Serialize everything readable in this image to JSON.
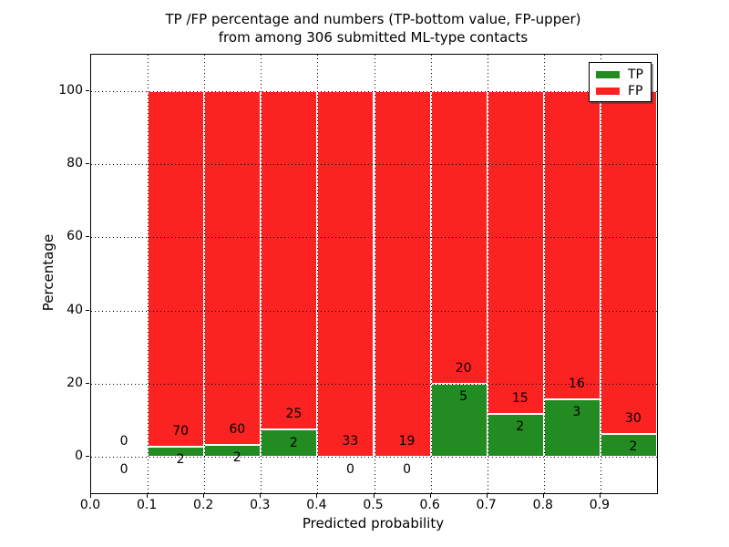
{
  "title": {
    "line1": "TP /FP percentage and numbers (TP-bottom value, FP-upper)",
    "line2": "from among 306 submitted ML-type contacts"
  },
  "colors": {
    "tp": "#228b22",
    "fp": "#fb2222",
    "bar_edge": "#ffffff",
    "grid": "#000000",
    "background": "#ffffff"
  },
  "chart_data": {
    "type": "bar",
    "stacked": true,
    "title": "TP /FP percentage and numbers (TP-bottom value, FP-upper) from among 306 submitted ML-type contacts",
    "xlabel": "Predicted probability",
    "ylabel": "Percentage",
    "xlim": [
      0.0,
      1.0
    ],
    "ylim": [
      -10,
      110
    ],
    "grid": true,
    "legend_position": "upper right",
    "xtick_labels": [
      "0.0",
      "0.1",
      "0.2",
      "0.3",
      "0.4",
      "0.5",
      "0.6",
      "0.7",
      "0.8",
      "0.9"
    ],
    "xtick_values": [
      0.0,
      0.1,
      0.2,
      0.3,
      0.4,
      0.5,
      0.6,
      0.7,
      0.8,
      0.9
    ],
    "ytick_values": [
      0,
      20,
      40,
      60,
      80,
      100
    ],
    "legend": [
      {
        "label": "TP",
        "color": "#228b22"
      },
      {
        "label": "FP",
        "color": "#fb2222"
      }
    ],
    "bins": [
      {
        "x0": 0.0,
        "x1": 0.1,
        "tp": 0,
        "fp": 0
      },
      {
        "x0": 0.1,
        "x1": 0.2,
        "tp": 2,
        "fp": 70
      },
      {
        "x0": 0.2,
        "x1": 0.3,
        "tp": 2,
        "fp": 60
      },
      {
        "x0": 0.3,
        "x1": 0.4,
        "tp": 2,
        "fp": 25
      },
      {
        "x0": 0.4,
        "x1": 0.5,
        "tp": 0,
        "fp": 33
      },
      {
        "x0": 0.5,
        "x1": 0.6,
        "tp": 0,
        "fp": 19
      },
      {
        "x0": 0.6,
        "x1": 0.7,
        "tp": 5,
        "fp": 20
      },
      {
        "x0": 0.7,
        "x1": 0.8,
        "tp": 2,
        "fp": 15
      },
      {
        "x0": 0.8,
        "x1": 0.9,
        "tp": 3,
        "fp": 16
      },
      {
        "x0": 0.9,
        "x1": 1.0,
        "tp": 2,
        "fp": 30
      }
    ]
  }
}
